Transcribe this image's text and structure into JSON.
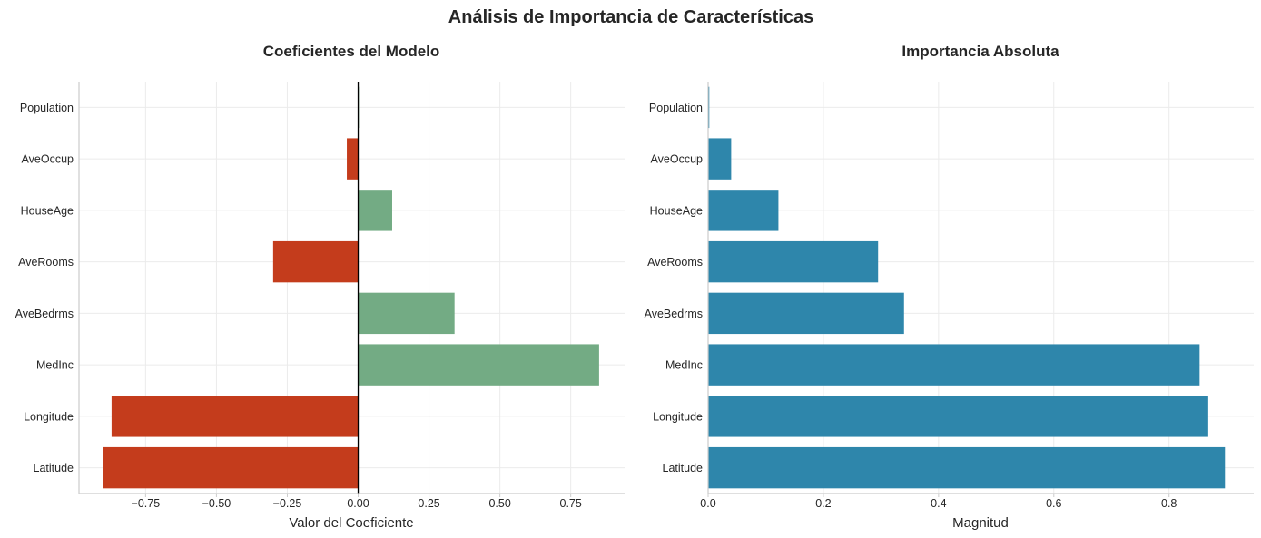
{
  "suptitle": "Análisis de Importancia de Características",
  "chart_data": [
    {
      "type": "bar",
      "orientation": "horizontal",
      "title": "Coeficientes del Modelo",
      "xlabel": "Valor del Coeficiente",
      "ylabel": "",
      "categories": [
        "Latitude",
        "Longitude",
        "MedInc",
        "AveBedrms",
        "AveRooms",
        "HouseAge",
        "AveOccup",
        "Population"
      ],
      "values": [
        -0.9,
        -0.87,
        0.85,
        0.34,
        -0.3,
        0.12,
        -0.04,
        0.002
      ],
      "xlim": [
        -0.985,
        0.94
      ],
      "xticks": [
        -0.75,
        -0.5,
        -0.25,
        0.0,
        0.25,
        0.5,
        0.75
      ],
      "xtick_labels": [
        "−0.75",
        "−0.50",
        "−0.25",
        "0.00",
        "0.25",
        "0.50",
        "0.75"
      ],
      "zero_line": true,
      "grid": true,
      "colors": {
        "positive": "#73ab84",
        "negative": "#c43c1c",
        "zero_line": "#000000"
      }
    },
    {
      "type": "bar",
      "orientation": "horizontal",
      "title": "Importancia Absoluta",
      "xlabel": "Magnitud",
      "ylabel": "",
      "categories": [
        "Latitude",
        "Longitude",
        "MedInc",
        "AveBedrms",
        "AveRooms",
        "HouseAge",
        "AveOccup",
        "Population"
      ],
      "values": [
        0.897,
        0.868,
        0.853,
        0.34,
        0.295,
        0.122,
        0.04,
        0.002
      ],
      "xlim": [
        0,
        0.947
      ],
      "xticks": [
        0,
        0.2,
        0.4,
        0.6,
        0.8
      ],
      "xtick_labels": [
        "0.0",
        "0.2",
        "0.4",
        "0.6",
        "0.8"
      ],
      "grid": true,
      "colors": {
        "bar": "#2e86ab"
      }
    }
  ]
}
